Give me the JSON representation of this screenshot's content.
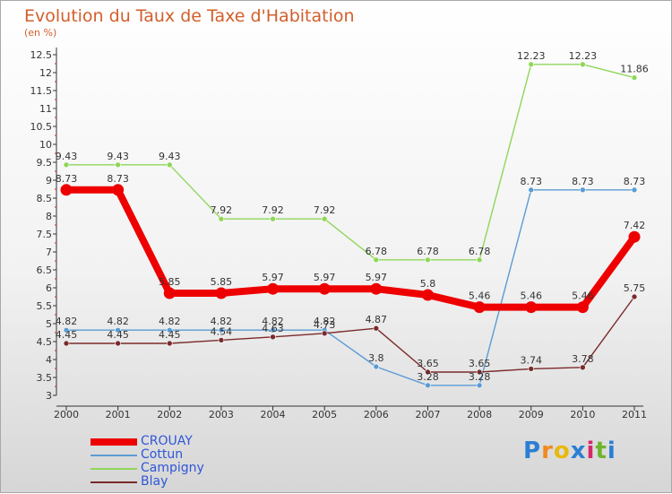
{
  "chart_data": {
    "type": "line",
    "title": "Evolution du Taux de Taxe d'Habitation",
    "unit_label": "(en %)",
    "x": [
      "2000",
      "2001",
      "2002",
      "2003",
      "2004",
      "2005",
      "2006",
      "2007",
      "2008",
      "2009",
      "2010",
      "2011"
    ],
    "ylim": [
      3,
      12.5
    ],
    "yticks": [
      3,
      3.5,
      4,
      4.5,
      5,
      5.5,
      6,
      6.5,
      7,
      7.5,
      8,
      8.5,
      9,
      9.5,
      10,
      10.5,
      11,
      11.5,
      12,
      12.5
    ],
    "grid": false,
    "legend_position": "bottom-left",
    "series": [
      {
        "name": "Cottun",
        "color": "#5b9bd5",
        "values": [
          4.82,
          4.82,
          4.82,
          4.82,
          4.82,
          4.82,
          3.8,
          3.28,
          3.28,
          8.73,
          8.73,
          8.73
        ]
      },
      {
        "name": "Campigny",
        "color": "#8fd65a",
        "values": [
          9.43,
          9.43,
          9.43,
          7.92,
          7.92,
          7.92,
          6.78,
          6.78,
          6.78,
          12.23,
          12.23,
          11.86
        ]
      },
      {
        "name": "Blay",
        "color": "#7a2a2a",
        "values": [
          4.45,
          4.45,
          4.45,
          4.54,
          4.63,
          4.73,
          4.87,
          3.65,
          3.65,
          3.74,
          3.78,
          5.75
        ]
      },
      {
        "name": "CROUAY",
        "color": "#ee0000",
        "values": [
          8.73,
          8.73,
          5.85,
          5.85,
          5.97,
          5.97,
          5.97,
          5.8,
          5.46,
          5.46,
          5.46,
          7.42
        ]
      }
    ],
    "legend_order": [
      "CROUAY",
      "Cottun",
      "Campigny",
      "Blay"
    ]
  },
  "logo": {
    "letters": [
      "P",
      "r",
      "o",
      "x",
      "i",
      "t",
      "i"
    ],
    "colors": [
      "#2a7fd4",
      "#f28a1e",
      "#e8b90d",
      "#2a7fd4",
      "#d6286b",
      "#6cb52d",
      "#2a7fd4"
    ]
  }
}
